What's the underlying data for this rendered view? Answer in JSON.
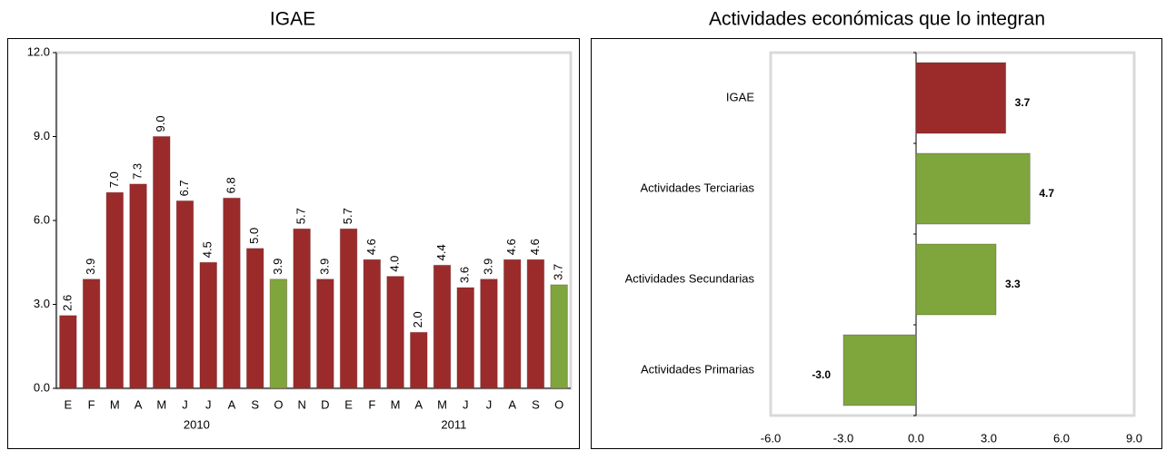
{
  "chart_data": [
    {
      "type": "bar",
      "title": "IGAE",
      "category_groups": [
        {
          "name": "2010",
          "categories": [
            "E",
            "F",
            "M",
            "A",
            "M",
            "J",
            "J",
            "A",
            "S",
            "O",
            "N",
            "D"
          ]
        },
        {
          "name": "2011",
          "categories": [
            "E",
            "F",
            "M",
            "A",
            "M",
            "J",
            "J",
            "A",
            "S",
            "O"
          ]
        }
      ],
      "values": [
        2.6,
        3.9,
        7.0,
        7.3,
        9.0,
        6.7,
        4.5,
        6.8,
        5.0,
        3.9,
        5.7,
        3.9,
        5.7,
        4.6,
        4.0,
        2.0,
        4.4,
        3.6,
        3.9,
        4.6,
        4.6,
        3.7
      ],
      "value_labels": [
        "2.6",
        "3.9",
        "7.0",
        "7.3",
        "9.0",
        "6.7",
        "4.5",
        "6.8",
        "5.0",
        "3.9",
        "5.7",
        "3.9",
        "5.7",
        "4.6",
        "4.0",
        "2.0",
        "4.4",
        "3.6",
        "3.9",
        "4.6",
        "4.6",
        "3.7"
      ],
      "colors": [
        "#9b2b2b",
        "#9b2b2b",
        "#9b2b2b",
        "#9b2b2b",
        "#9b2b2b",
        "#9b2b2b",
        "#9b2b2b",
        "#9b2b2b",
        "#9b2b2b",
        "#7fa63c",
        "#9b2b2b",
        "#9b2b2b",
        "#9b2b2b",
        "#9b2b2b",
        "#9b2b2b",
        "#9b2b2b",
        "#9b2b2b",
        "#9b2b2b",
        "#9b2b2b",
        "#9b2b2b",
        "#9b2b2b",
        "#7fa63c"
      ],
      "ylim": [
        0,
        12
      ],
      "yticks": [
        {
          "value": 0,
          "label": "0.0"
        },
        {
          "value": 3,
          "label": "3.0"
        },
        {
          "value": 6,
          "label": "6.0"
        },
        {
          "value": 9,
          "label": "9.0"
        },
        {
          "value": 12,
          "label": "12.0"
        }
      ]
    },
    {
      "type": "barh",
      "title": "Actividades económicas que lo integran",
      "categories": [
        "IGAE",
        "Actividades Terciarias",
        "Actividades Secundarias",
        "Actividades Primarias"
      ],
      "values": [
        3.7,
        4.7,
        3.3,
        -3.0
      ],
      "value_labels": [
        "3.7",
        "4.7",
        "3.3",
        "-3.0"
      ],
      "colors": [
        "#9b2b2b",
        "#7fa63c",
        "#7fa63c",
        "#7fa63c"
      ],
      "xlim": [
        -6,
        9
      ],
      "xticks": [
        {
          "value": -6,
          "label": "-6.0"
        },
        {
          "value": -3,
          "label": "-3.0"
        },
        {
          "value": 0,
          "label": "0.0"
        },
        {
          "value": 3,
          "label": "3.0"
        },
        {
          "value": 6,
          "label": "6.0"
        },
        {
          "value": 9,
          "label": "9.0"
        }
      ]
    }
  ]
}
